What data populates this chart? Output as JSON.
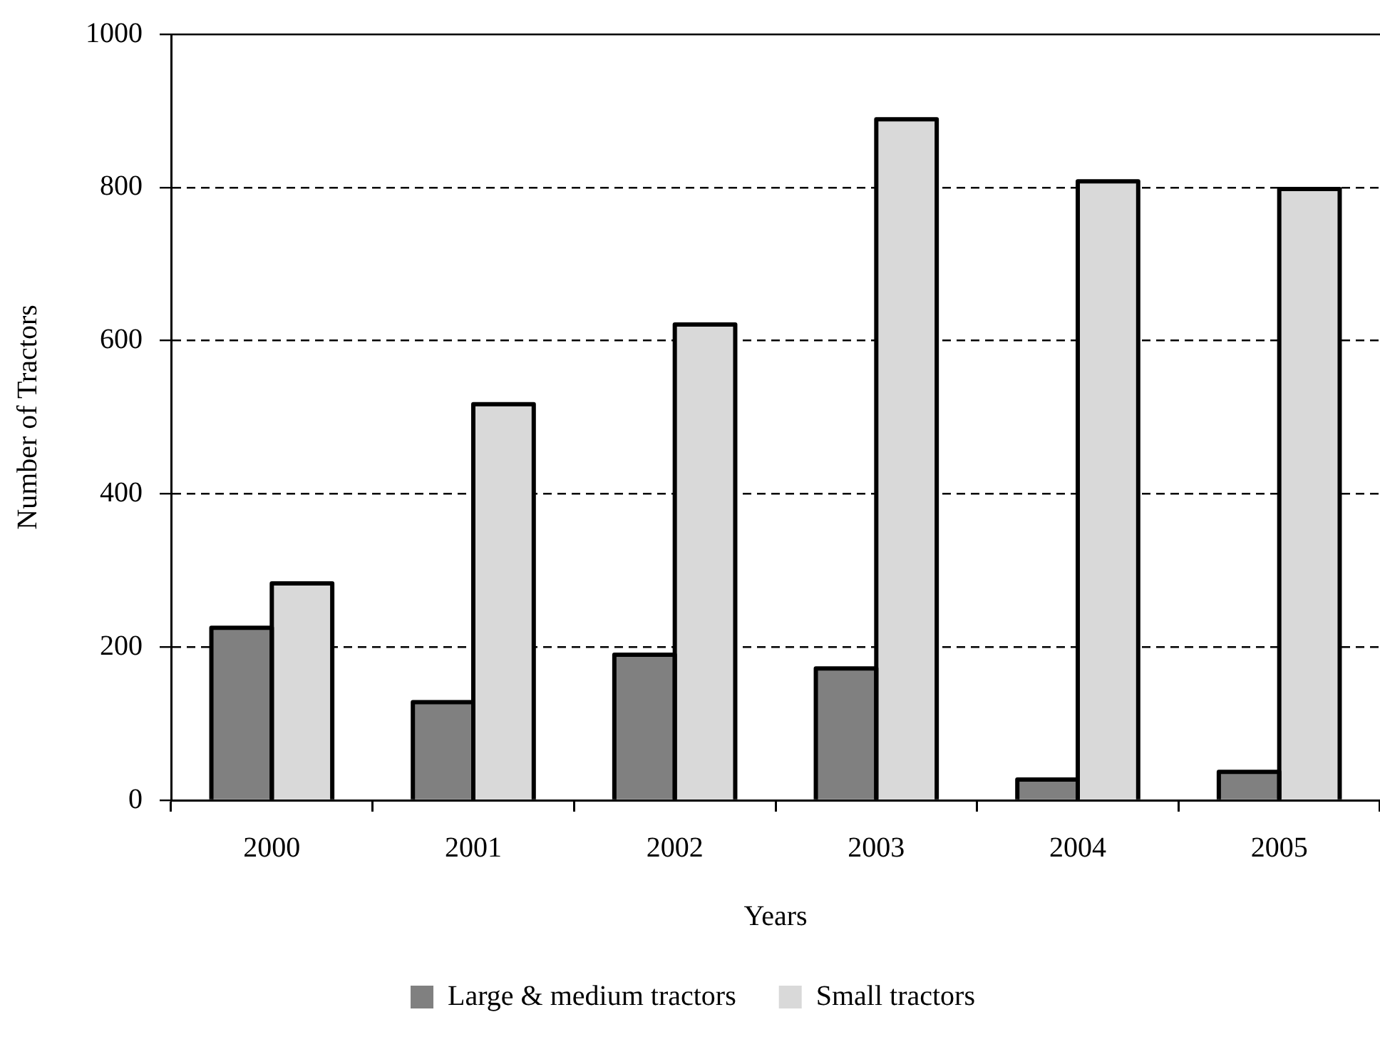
{
  "chart_data": {
    "type": "bar",
    "xlabel": "Years",
    "ylabel": "Number of Tractors",
    "categories": [
      "2000",
      "2001",
      "2002",
      "2003",
      "2004",
      "2005"
    ],
    "series": [
      {
        "name": "Large & medium tractors",
        "color": "#808080",
        "values": [
          225,
          128,
          190,
          172,
          27,
          37
        ]
      },
      {
        "name": "Small tractors",
        "color": "#d9d9d9",
        "values": [
          283,
          517,
          621,
          889,
          808,
          798
        ]
      }
    ],
    "ylim": [
      0,
      1000
    ],
    "yticks": [
      0,
      200,
      400,
      600,
      800,
      1000
    ],
    "grid": "y",
    "legend": "bottom"
  }
}
